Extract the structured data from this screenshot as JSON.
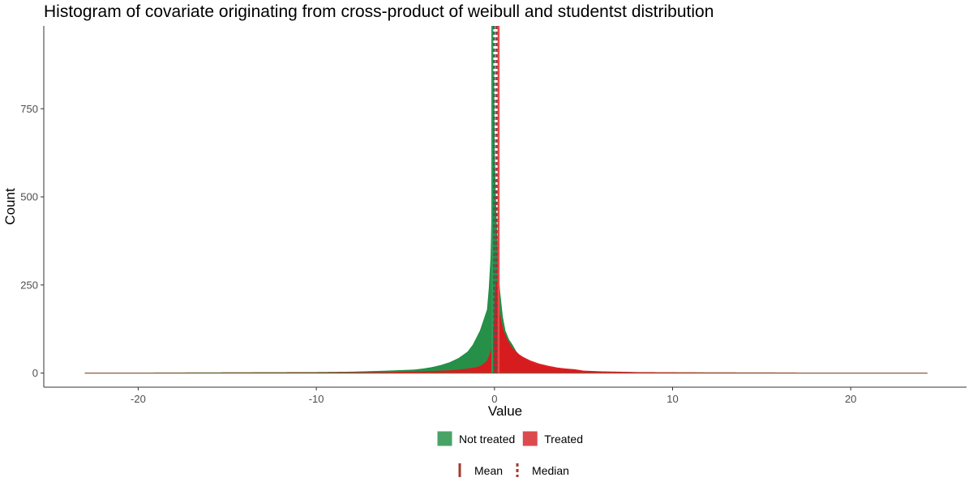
{
  "chart_data": {
    "type": "histogram",
    "title": "Histogram of covariate originating from cross-product of weibull and studentst distribution",
    "xlabel": "Value",
    "ylabel": "Count",
    "xlim": [
      -25.3,
      26.5
    ],
    "ylim": [
      -40,
      985
    ],
    "x_ticks": [
      -20,
      -10,
      0,
      10,
      20
    ],
    "y_ticks": [
      0,
      250,
      500,
      750
    ],
    "x_range_of_data": [
      -23,
      24.3
    ],
    "grid": false,
    "legend_position": "bottom",
    "series": [
      {
        "name": "Not treated",
        "color": "#1a8a3f",
        "bins": [
          [
            -23,
            0
          ],
          [
            -10,
            2
          ],
          [
            -8,
            3
          ],
          [
            -6,
            6
          ],
          [
            -5,
            8
          ],
          [
            -4.5,
            9
          ],
          [
            -4,
            12
          ],
          [
            -3.5,
            16
          ],
          [
            -3,
            22
          ],
          [
            -2.5,
            30
          ],
          [
            -2,
            42
          ],
          [
            -1.5,
            60
          ],
          [
            -1.2,
            80
          ],
          [
            -1,
            100
          ],
          [
            -0.8,
            120
          ],
          [
            -0.6,
            150
          ],
          [
            -0.4,
            180
          ],
          [
            -0.3,
            240
          ],
          [
            -0.2,
            330
          ],
          [
            -0.1,
            560
          ],
          [
            -0.05,
            900
          ],
          [
            0,
            640
          ],
          [
            0.05,
            520
          ],
          [
            0.1,
            440
          ],
          [
            0.2,
            300
          ],
          [
            0.3,
            230
          ],
          [
            0.45,
            160
          ],
          [
            0.6,
            120
          ],
          [
            0.8,
            95
          ],
          [
            1,
            80
          ],
          [
            1.2,
            62
          ],
          [
            1.5,
            45
          ],
          [
            2,
            30
          ],
          [
            2.5,
            22
          ],
          [
            3,
            16
          ],
          [
            3.5,
            12
          ],
          [
            4,
            10
          ],
          [
            4.5,
            8
          ],
          [
            5,
            4
          ],
          [
            7,
            2
          ],
          [
            10,
            1
          ],
          [
            24.3,
            0
          ]
        ]
      },
      {
        "name": "Treated",
        "color": "#e0161e",
        "bins": [
          [
            -23,
            0
          ],
          [
            -10,
            1
          ],
          [
            -6,
            2
          ],
          [
            -5,
            3
          ],
          [
            -4,
            4
          ],
          [
            -3,
            6
          ],
          [
            -2.5,
            7
          ],
          [
            -2,
            9
          ],
          [
            -1.5,
            12
          ],
          [
            -1,
            16
          ],
          [
            -0.7,
            22
          ],
          [
            -0.4,
            35
          ],
          [
            -0.2,
            60
          ],
          [
            -0.1,
            90
          ],
          [
            0,
            150
          ],
          [
            0.05,
            230
          ],
          [
            0.1,
            260
          ],
          [
            0.15,
            240
          ],
          [
            0.2,
            200
          ],
          [
            0.3,
            165
          ],
          [
            0.4,
            140
          ],
          [
            0.5,
            120
          ],
          [
            0.7,
            95
          ],
          [
            1,
            70
          ],
          [
            1.3,
            55
          ],
          [
            1.6,
            45
          ],
          [
            2,
            35
          ],
          [
            2.5,
            26
          ],
          [
            3,
            20
          ],
          [
            3.5,
            15
          ],
          [
            4,
            12
          ],
          [
            4.5,
            10
          ],
          [
            5,
            6
          ],
          [
            6,
            4
          ],
          [
            8,
            2
          ],
          [
            12,
            1
          ],
          [
            24.3,
            0
          ]
        ]
      }
    ],
    "vlines": [
      {
        "group": "Not treated",
        "stat": "Mean",
        "x": -0.12,
        "color": "#2e9b57",
        "style": "solid"
      },
      {
        "group": "Not treated",
        "stat": "Median",
        "x": -0.02,
        "color": "#555555",
        "style": "dashed"
      },
      {
        "group": "Treated",
        "stat": "Mean",
        "x": 0.23,
        "color": "#e64a4a",
        "style": "solid"
      },
      {
        "group": "Treated",
        "stat": "Median",
        "x": 0.12,
        "color": "#8b3a3a",
        "style": "dashed"
      }
    ],
    "legend": {
      "fill": [
        {
          "label": "Not treated",
          "color": "#4aa366"
        },
        {
          "label": "Treated",
          "color": "#dd4a4d"
        }
      ],
      "linetype": [
        {
          "label": "Mean",
          "style": "solid",
          "color": "#a33a2f"
        },
        {
          "label": "Median",
          "style": "dashed",
          "color": "#a33a2f"
        }
      ]
    }
  }
}
